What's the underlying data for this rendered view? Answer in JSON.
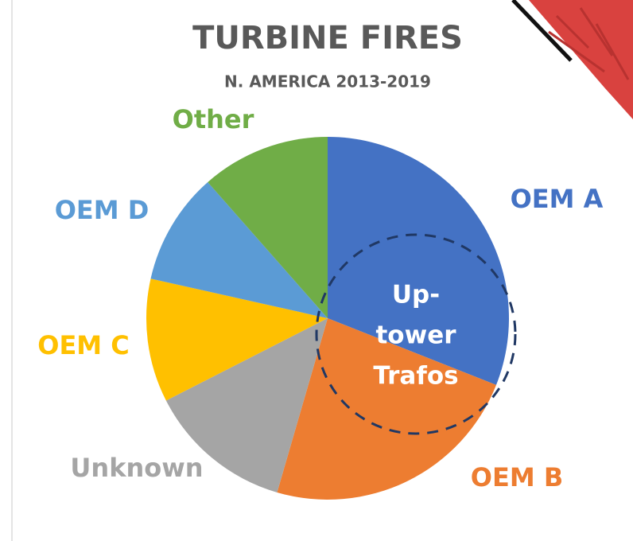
{
  "chart_data": {
    "type": "pie",
    "title": "TURBINE FIRES",
    "subtitle": "N. AMERICA 2013-2019",
    "categories": [
      "OEM A",
      "OEM B",
      "Unknown",
      "OEM C",
      "OEM D",
      "Other"
    ],
    "values": [
      31,
      23.5,
      13,
      11,
      10,
      11.5
    ],
    "colors": [
      "#4472c4",
      "#ed7d31",
      "#a5a5a5",
      "#ffc000",
      "#5b9bd5",
      "#70ad47"
    ],
    "annotation": [
      "Up-",
      "tower",
      "Trafos"
    ]
  }
}
